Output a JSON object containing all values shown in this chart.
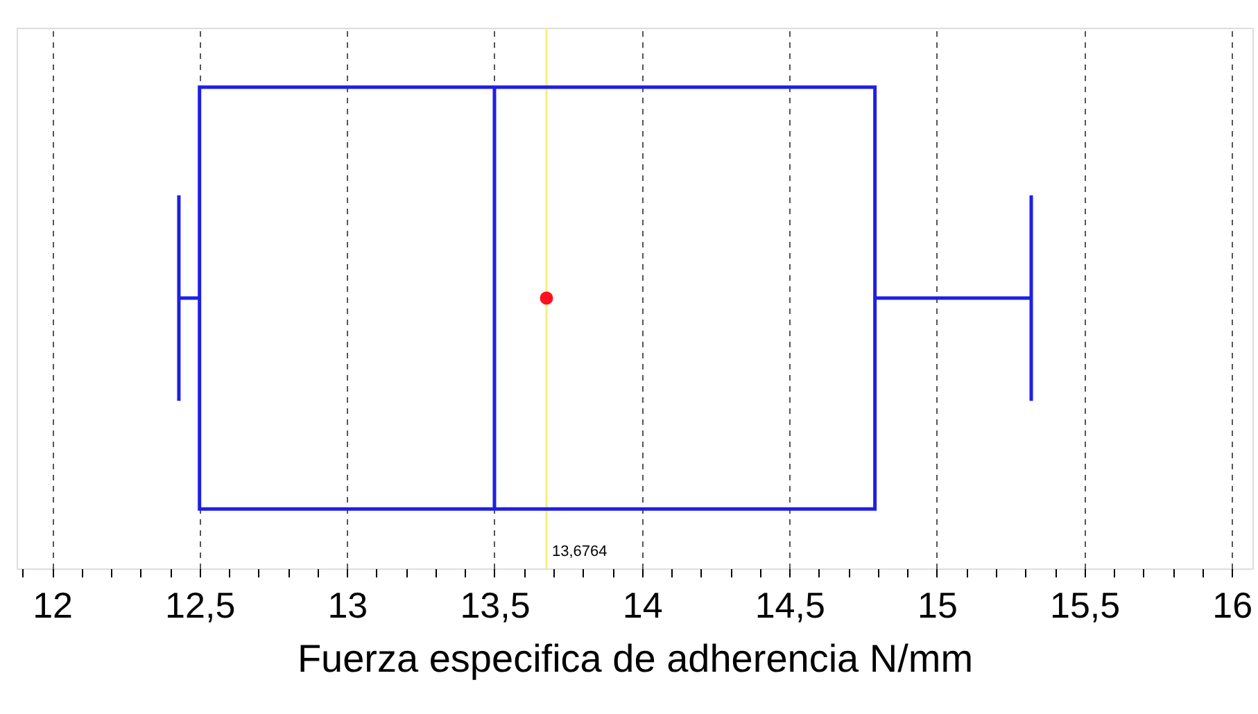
{
  "chart_data": {
    "type": "box",
    "orientation": "horizontal",
    "categories": [
      null
    ],
    "series": [
      {
        "color": "#1f1fe6",
        "boxes": [
          {
            "low": 12.43,
            "q1": 12.5,
            "median": 13.5,
            "q3": 14.79,
            "high": 15.32,
            "mean": 13.6764
          }
        ]
      }
    ],
    "xlabel": "Fuerza especifica de adherencia N/mm",
    "xlim": [
      11.88,
      16.07
    ],
    "xticks": [
      {
        "value": 11.9,
        "label": null
      },
      12,
      {
        "value": 12.1,
        "label": null
      },
      {
        "value": 12.2,
        "label": null
      },
      {
        "value": 12.3,
        "label": null
      },
      {
        "value": 12.4,
        "label": null
      },
      {
        "value": 12.5,
        "label": "12,5"
      },
      {
        "value": 12.6,
        "label": null
      },
      {
        "value": 12.7,
        "label": null
      },
      {
        "value": 12.8,
        "label": null
      },
      {
        "value": 12.9,
        "label": null
      },
      13,
      {
        "value": 13.1,
        "label": null
      },
      {
        "value": 13.2,
        "label": null
      },
      {
        "value": 13.3,
        "label": null
      },
      {
        "value": 13.4,
        "label": null
      },
      {
        "value": 13.5,
        "label": "13,5"
      },
      {
        "value": 13.6,
        "label": null
      },
      {
        "value": 13.7,
        "label": null
      },
      {
        "value": 13.8,
        "label": null
      },
      {
        "value": 13.9,
        "label": null
      },
      14,
      {
        "value": 14.1,
        "label": null
      },
      {
        "value": 14.2,
        "label": null
      },
      {
        "value": 14.3,
        "label": null
      },
      {
        "value": 14.4,
        "label": null
      },
      {
        "value": 14.5,
        "label": "14,5"
      },
      {
        "value": 14.6,
        "label": null
      },
      {
        "value": 14.7,
        "label": null
      },
      {
        "value": 14.8,
        "label": null
      },
      {
        "value": 14.9,
        "label": null
      },
      15,
      {
        "value": 15.1,
        "label": null
      },
      {
        "value": 15.2,
        "label": null
      },
      {
        "value": 15.3,
        "label": null
      },
      {
        "value": 15.4,
        "label": null
      },
      {
        "value": 15.5,
        "label": "15,5"
      },
      {
        "value": 15.6,
        "label": null
      },
      {
        "value": 15.7,
        "label": null
      },
      {
        "value": 15.8,
        "label": null
      },
      {
        "value": 15.9,
        "label": null
      },
      16
    ],
    "grid": "x",
    "tick_labels": "x",
    "ref_lines": [
      {
        "axis": "x",
        "value": 13.6764,
        "label": "13,6764",
        "color": "#f5f07a"
      }
    ]
  }
}
